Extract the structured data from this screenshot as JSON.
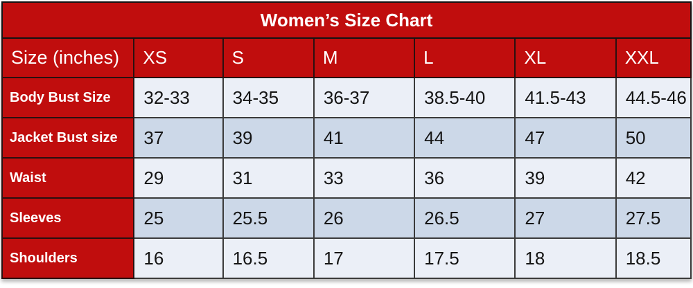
{
  "chart_data": {
    "type": "table",
    "title": "Women’s Size Chart",
    "columns": [
      "Size (inches)",
      "XS",
      "S",
      "M",
      "L",
      "XL",
      "XXL"
    ],
    "rows": [
      {
        "label": "Body Bust Size",
        "values": [
          "32-33",
          "34-35",
          "36-37",
          "38.5-40",
          "41.5-43",
          "44.5-46"
        ]
      },
      {
        "label": "Jacket Bust size",
        "values": [
          "37",
          "39",
          "41",
          "44",
          "47",
          "50"
        ]
      },
      {
        "label": "Waist",
        "values": [
          "29",
          "31",
          "33",
          "36",
          "39",
          "42"
        ]
      },
      {
        "label": "Sleeves",
        "values": [
          "25",
          "25.5",
          "26",
          "26.5",
          "27",
          "27.5"
        ]
      },
      {
        "label": "Shoulders",
        "values": [
          "16",
          "16.5",
          "17",
          "17.5",
          "18",
          "18.5"
        ]
      }
    ],
    "layout_hints": {
      "alternating_rows": true,
      "first_row_shade": "light"
    },
    "colors": {
      "header_bg": "#c00d0d",
      "header_text": "#ffffff",
      "row_light": "#ebeff7",
      "row_dark": "#ccd8e8",
      "cell_text": "#151515",
      "border": "#3a3a3a"
    }
  }
}
